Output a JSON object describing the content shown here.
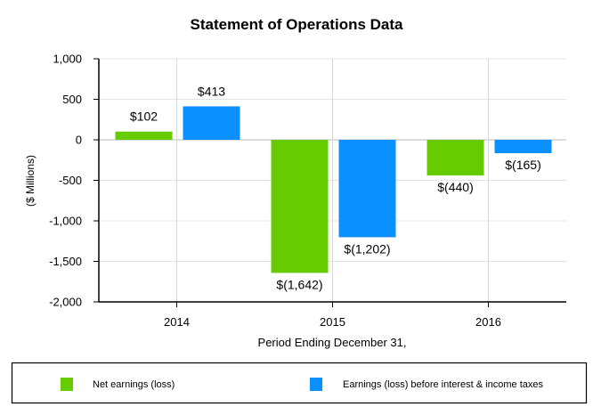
{
  "chart_data": {
    "type": "bar",
    "title": "Statement of Operations Data",
    "xlabel": "Period Ending December 31,",
    "ylabel": "($ Millions)",
    "categories": [
      "2014",
      "2015",
      "2016"
    ],
    "ylim": [
      -2000,
      1000
    ],
    "yticks": [
      1000,
      500,
      0,
      -500,
      -1000,
      -1500,
      -2000
    ],
    "ytick_labels": [
      "1,000",
      "500",
      "0",
      "-500",
      "-1,000",
      "-1,500",
      "-2,000"
    ],
    "grid": true,
    "legend_position": "bottom",
    "series": [
      {
        "name": "Net earnings (loss)",
        "color": "#66cc00",
        "values": [
          102,
          -1642,
          -440
        ],
        "labels": [
          "$102",
          "$(1,642)",
          "$(440)"
        ]
      },
      {
        "name": "Earnings (loss) before interest & income taxes",
        "color": "#0a90ff",
        "values": [
          413,
          -1202,
          -165
        ],
        "labels": [
          "$413",
          "$(1,202)",
          "$(165)"
        ]
      }
    ]
  }
}
